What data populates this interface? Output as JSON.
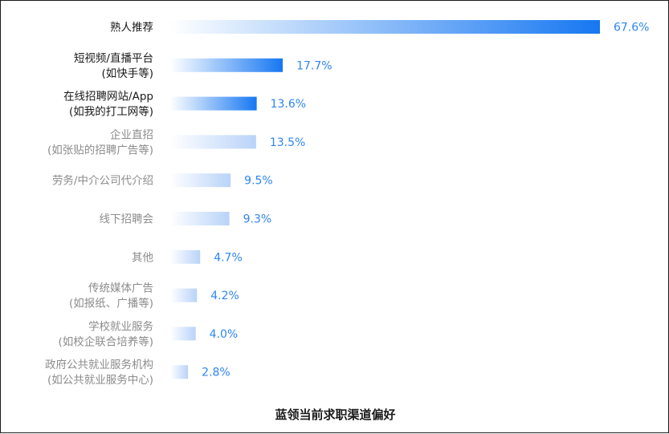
{
  "chart_data": {
    "type": "bar",
    "orientation": "horizontal",
    "title": "蓝领当前求职渠道偏好",
    "xlabel": "",
    "ylabel": "",
    "xlim": [
      0,
      67.6
    ],
    "grid": false,
    "legend": "none",
    "unit": "%",
    "categories": [
      [
        "熟人推荐"
      ],
      [
        "短视频/直播平台",
        "(如快手等)"
      ],
      [
        "在线招聘网站/App",
        "(如我的打工网等)"
      ],
      [
        "企业直招",
        "(如张贴的招聘广告等)"
      ],
      [
        "劳务/中介公司代介绍"
      ],
      [
        "线下招聘会"
      ],
      [
        "其他"
      ],
      [
        "传统媒体广告",
        "(如报纸、广播等)"
      ],
      [
        "学校就业服务",
        "(如校企联合培养等)"
      ],
      [
        "政府公共就业服务机构",
        "(如公共就业服务中心)"
      ]
    ],
    "values": [
      67.6,
      17.7,
      13.6,
      13.5,
      9.5,
      9.3,
      4.7,
      4.2,
      4.0,
      2.8
    ],
    "value_labels": [
      "67.6%",
      "17.7%",
      "13.6%",
      "13.5%",
      "9.5%",
      "9.3%",
      "4.7%",
      "4.2%",
      "4.0%",
      "2.8%"
    ],
    "highlight_top": 3,
    "colors": {
      "bar_strong": "#1677f2",
      "bar_light": "#b9d3f9",
      "bar_start": "#ffffff",
      "label_dark": "#1a1a1a",
      "label_muted": "#8c8c8c",
      "value": "#2f86f0"
    }
  }
}
